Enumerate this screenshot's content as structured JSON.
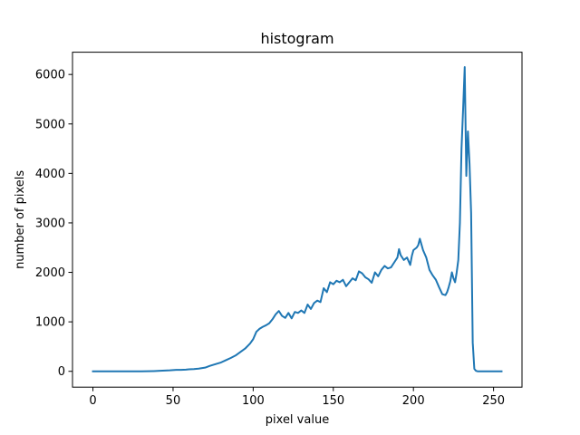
{
  "chart_data": {
    "type": "line",
    "title": "histogram",
    "xlabel": "pixel value",
    "ylabel": "number of pixels",
    "xlim": [
      -12.75,
      267.75
    ],
    "ylim": [
      -320,
      6450
    ],
    "xticks": [
      0,
      50,
      100,
      150,
      200,
      250
    ],
    "yticks": [
      0,
      1000,
      2000,
      3000,
      4000,
      5000,
      6000
    ],
    "grid": false,
    "series": [
      {
        "color": "#1f77b4",
        "points": [
          [
            0,
            0
          ],
          [
            10,
            0
          ],
          [
            20,
            0
          ],
          [
            30,
            0
          ],
          [
            38,
            5
          ],
          [
            42,
            10
          ],
          [
            45,
            15
          ],
          [
            48,
            20
          ],
          [
            50,
            25
          ],
          [
            52,
            30
          ],
          [
            55,
            30
          ],
          [
            58,
            35
          ],
          [
            60,
            40
          ],
          [
            63,
            45
          ],
          [
            66,
            55
          ],
          [
            70,
            75
          ],
          [
            73,
            110
          ],
          [
            76,
            140
          ],
          [
            80,
            180
          ],
          [
            83,
            225
          ],
          [
            86,
            270
          ],
          [
            89,
            320
          ],
          [
            92,
            390
          ],
          [
            95,
            460
          ],
          [
            98,
            560
          ],
          [
            100,
            650
          ],
          [
            102,
            800
          ],
          [
            104,
            860
          ],
          [
            106,
            900
          ],
          [
            108,
            930
          ],
          [
            110,
            970
          ],
          [
            112,
            1050
          ],
          [
            114,
            1150
          ],
          [
            116,
            1220
          ],
          [
            118,
            1120
          ],
          [
            120,
            1080
          ],
          [
            122,
            1180
          ],
          [
            124,
            1070
          ],
          [
            126,
            1200
          ],
          [
            128,
            1180
          ],
          [
            130,
            1230
          ],
          [
            132,
            1180
          ],
          [
            134,
            1350
          ],
          [
            136,
            1260
          ],
          [
            138,
            1380
          ],
          [
            140,
            1430
          ],
          [
            142,
            1400
          ],
          [
            144,
            1680
          ],
          [
            146,
            1600
          ],
          [
            148,
            1800
          ],
          [
            150,
            1760
          ],
          [
            152,
            1830
          ],
          [
            154,
            1800
          ],
          [
            156,
            1850
          ],
          [
            158,
            1720
          ],
          [
            160,
            1800
          ],
          [
            162,
            1880
          ],
          [
            164,
            1840
          ],
          [
            166,
            2020
          ],
          [
            168,
            1980
          ],
          [
            170,
            1900
          ],
          [
            172,
            1860
          ],
          [
            174,
            1790
          ],
          [
            176,
            2000
          ],
          [
            178,
            1920
          ],
          [
            180,
            2050
          ],
          [
            182,
            2130
          ],
          [
            184,
            2080
          ],
          [
            186,
            2100
          ],
          [
            188,
            2200
          ],
          [
            190,
            2300
          ],
          [
            191,
            2470
          ],
          [
            192,
            2350
          ],
          [
            194,
            2250
          ],
          [
            196,
            2300
          ],
          [
            198,
            2150
          ],
          [
            199,
            2330
          ],
          [
            200,
            2450
          ],
          [
            202,
            2500
          ],
          [
            203,
            2550
          ],
          [
            204,
            2680
          ],
          [
            206,
            2450
          ],
          [
            208,
            2300
          ],
          [
            210,
            2050
          ],
          [
            212,
            1940
          ],
          [
            214,
            1850
          ],
          [
            216,
            1700
          ],
          [
            218,
            1560
          ],
          [
            220,
            1540
          ],
          [
            221,
            1600
          ],
          [
            222,
            1700
          ],
          [
            223,
            1820
          ],
          [
            224,
            2000
          ],
          [
            225,
            1880
          ],
          [
            226,
            1800
          ],
          [
            227,
            2000
          ],
          [
            228,
            2250
          ],
          [
            229,
            3000
          ],
          [
            230,
            4500
          ],
          [
            231,
            5300
          ],
          [
            232,
            6150
          ],
          [
            233,
            3950
          ],
          [
            234,
            4850
          ],
          [
            235,
            4200
          ],
          [
            236,
            3200
          ],
          [
            237,
            580
          ],
          [
            238,
            50
          ],
          [
            239,
            10
          ],
          [
            240,
            0
          ],
          [
            245,
            0
          ],
          [
            250,
            0
          ],
          [
            255,
            0
          ]
        ]
      }
    ]
  }
}
